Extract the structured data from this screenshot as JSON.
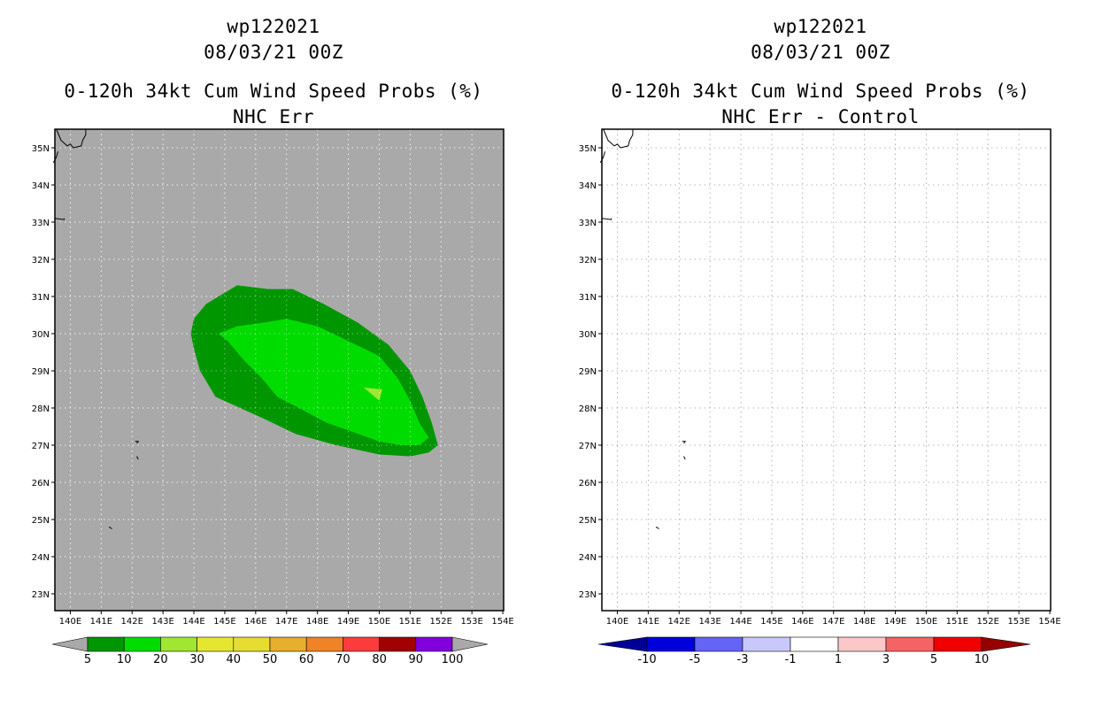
{
  "panels": [
    {
      "title_line1": "wp122021",
      "title_line2": "08/03/21 00Z",
      "title_line3": "0-120h 34kt Cum Wind Speed Probs (%)",
      "title_line4": "NHC Err",
      "background": "#a9a9a9",
      "lat_labels": [
        "35N",
        "34N",
        "33N",
        "32N",
        "31N",
        "30N",
        "29N",
        "28N",
        "27N",
        "26N",
        "25N",
        "24N",
        "23N"
      ],
      "lon_labels": [
        "140E",
        "141E",
        "142E",
        "143E",
        "144E",
        "145E",
        "146E",
        "147E",
        "148E",
        "149E",
        "150E",
        "151E",
        "152E",
        "153E",
        "154E"
      ],
      "contours": [
        {
          "level": "5-10",
          "color": "#009600"
        },
        {
          "level": "10-20",
          "color": "#00dc00"
        },
        {
          "level": "20-30",
          "color": "#a0e632"
        }
      ],
      "colorbar": {
        "labels": [
          "5",
          "10",
          "20",
          "30",
          "40",
          "50",
          "60",
          "70",
          "80",
          "90",
          "100"
        ],
        "colors": [
          "#009600",
          "#00dc00",
          "#a0e632",
          "#e6e632",
          "#e6dc32",
          "#e6af2d",
          "#f08228",
          "#fa3c3c",
          "#a00000",
          "#8200dc"
        ],
        "under_color": "#a9a9a9",
        "over_color": "#a9a9a9"
      }
    },
    {
      "title_line1": "wp122021",
      "title_line2": "08/03/21 00Z",
      "title_line3": "0-120h 34kt Cum Wind Speed Probs (%)",
      "title_line4": "NHC Err - Control",
      "background": "#ffffff",
      "lat_labels": [
        "35N",
        "34N",
        "33N",
        "32N",
        "31N",
        "30N",
        "29N",
        "28N",
        "27N",
        "26N",
        "25N",
        "24N",
        "23N"
      ],
      "lon_labels": [
        "140E",
        "141E",
        "142E",
        "143E",
        "144E",
        "145E",
        "146E",
        "147E",
        "148E",
        "149E",
        "150E",
        "151E",
        "152E",
        "153E",
        "154E"
      ],
      "colorbar": {
        "labels": [
          "-10",
          "-5",
          "-3",
          "-1",
          "1",
          "3",
          "5",
          "10"
        ],
        "colors": [
          "#0000dc",
          "#6464f5",
          "#c8c8fa",
          "#ffffff",
          "#fac8c8",
          "#f56464",
          "#f00000"
        ],
        "under_color": "#000096",
        "over_color": "#960000"
      }
    }
  ]
}
